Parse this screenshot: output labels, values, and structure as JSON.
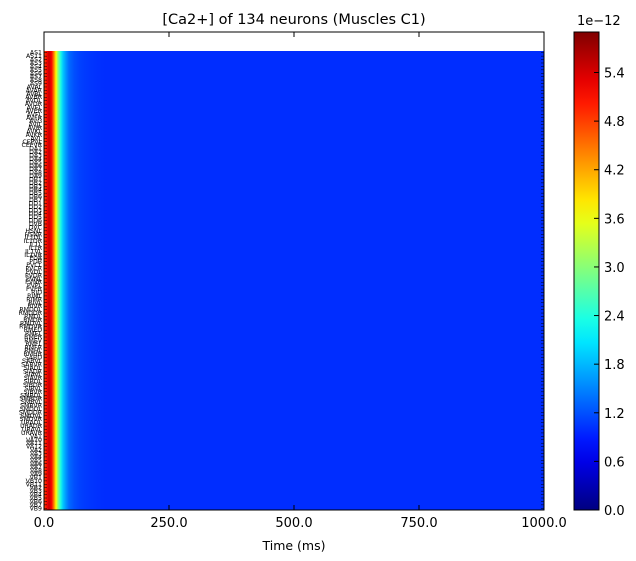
{
  "chart_data": {
    "type": "heatmap",
    "title": "[Ca2+] of 134 neurons (Muscles C1)",
    "xlabel": "Time (ms)",
    "ylabel": "",
    "xlim": [
      0,
      1000
    ],
    "x_ticks": [
      "0.0",
      "250.0",
      "500.0",
      "750.0",
      "1000.0"
    ],
    "x_tick_values": [
      0,
      250,
      500,
      750,
      1000
    ],
    "row_count": 134,
    "row_labels": [
      "AS1",
      "AS11",
      "AS2",
      "AS3",
      "AS4",
      "AS5",
      "AS6",
      "AS7",
      "AS8",
      "AS9",
      "AVAL",
      "AVAR",
      "AVBL",
      "AVBR",
      "AVDL",
      "AVDR",
      "AVEL",
      "AVER",
      "AVFL",
      "AVFR",
      "AVG",
      "AVJL",
      "AVJR",
      "AVKL",
      "AVKR",
      "AVL",
      "CEPVL",
      "CEPVR",
      "DA1",
      "DA2",
      "DA3",
      "DA4",
      "DA5",
      "DA6",
      "DA7",
      "DA8",
      "DA9",
      "DB1",
      "DB2",
      "DB3",
      "DB4",
      "DB5",
      "DB6",
      "DB7",
      "DD1",
      "DD2",
      "DD3",
      "DD4",
      "DD5",
      "DD6",
      "DVB",
      "DVC",
      "HSNL",
      "HSNR",
      "IL1DL",
      "IL1DR",
      "IL1L",
      "IL1R",
      "IL1VL",
      "IL1VR",
      "PDA",
      "PDB",
      "PVCL",
      "PVCR",
      "PVDL",
      "PVDR",
      "PVNL",
      "PVNR",
      "PVPL",
      "PVPR",
      "RID",
      "RIML",
      "RIMR",
      "RIVL",
      "RIVR",
      "RMDDL",
      "RMDDR",
      "RMDL",
      "RMDR",
      "RMDVL",
      "RMDVR",
      "RMED",
      "RMEL",
      "RMER",
      "RMEV",
      "RMFL",
      "RMFR",
      "RMHL",
      "RMHR",
      "SABD",
      "SABVL",
      "SABVR",
      "SIADL",
      "SIADR",
      "SIAVL",
      "SIAVR",
      "SIBDL",
      "SIBDR",
      "SIBVL",
      "SIBVR",
      "SMBDL",
      "SMBDR",
      "SMBVL",
      "SMBVR",
      "SMDDL",
      "SMDDR",
      "SMDVL",
      "SMDVR",
      "URADL",
      "URADR",
      "URAVL",
      "URAVR",
      "VA1",
      "VA10",
      "VA11",
      "VA12",
      "VA2",
      "VA3",
      "VA4",
      "VA5",
      "VA6",
      "VA7",
      "VA8",
      "VA9",
      "VB1",
      "VB10",
      "VB11",
      "VB2",
      "VB3",
      "VB4",
      "VB5",
      "VB6",
      "VB7",
      "VB9"
    ],
    "value_profile": {
      "description_units": "time_ms -> concentration",
      "t": [
        0,
        6,
        10,
        15,
        20,
        24,
        28,
        33,
        38,
        44,
        50,
        60,
        70,
        80,
        95,
        120,
        1000
      ],
      "v": [
        4.7e-12,
        5.2e-12,
        5.5e-12,
        5.2e-12,
        4.4e-12,
        3.7e-12,
        3e-12,
        2.4e-12,
        1.9e-12,
        1.6e-12,
        1.35e-12,
        1.2e-12,
        1.12e-12,
        1.08e-12,
        1.04e-12,
        1e-12,
        1e-12
      ]
    },
    "colorbar": {
      "colormap": "jet",
      "range": [
        0,
        5.9e-12
      ],
      "ticks": [
        "0.0",
        "0.6",
        "1.2",
        "1.8",
        "2.4",
        "3.0",
        "3.6",
        "4.2",
        "4.8",
        "5.4"
      ],
      "tick_values": [
        0.0,
        0.6,
        1.2,
        1.8,
        2.4,
        3.0,
        3.6,
        4.2,
        4.8,
        5.4
      ],
      "offset_label": "1e−12"
    }
  }
}
